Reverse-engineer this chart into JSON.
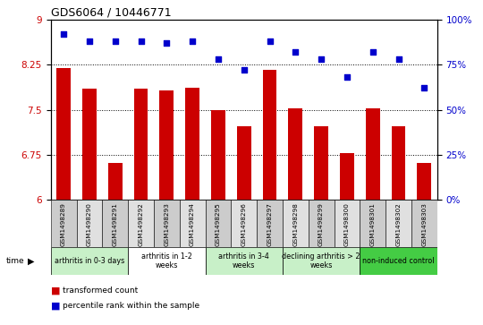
{
  "title": "GDS6064 / 10446771",
  "samples": [
    "GSM1498289",
    "GSM1498290",
    "GSM1498291",
    "GSM1498292",
    "GSM1498293",
    "GSM1498294",
    "GSM1498295",
    "GSM1498296",
    "GSM1498297",
    "GSM1498298",
    "GSM1498299",
    "GSM1498300",
    "GSM1498301",
    "GSM1498302",
    "GSM1498303"
  ],
  "bar_values": [
    8.2,
    7.85,
    6.62,
    7.85,
    7.82,
    7.87,
    7.5,
    7.22,
    8.17,
    7.52,
    7.22,
    6.78,
    7.52,
    7.22,
    6.62
  ],
  "blue_values": [
    92,
    88,
    88,
    88,
    87,
    88,
    78,
    72,
    88,
    82,
    78,
    68,
    82,
    78,
    62
  ],
  "bar_color": "#cc0000",
  "blue_color": "#0000cc",
  "ylim_left": [
    6,
    9
  ],
  "ylim_right": [
    0,
    100
  ],
  "yticks_left": [
    6,
    6.75,
    7.5,
    8.25,
    9
  ],
  "yticks_right": [
    0,
    25,
    50,
    75,
    100
  ],
  "groups": [
    {
      "label": "arthritis in 0-3 days",
      "start": 0,
      "end": 3,
      "color": "#c8f0c8"
    },
    {
      "label": "arthritis in 1-2\nweeks",
      "start": 3,
      "end": 6,
      "color": "#ffffff"
    },
    {
      "label": "arthritis in 3-4\nweeks",
      "start": 6,
      "end": 9,
      "color": "#c8f0c8"
    },
    {
      "label": "declining arthritis > 2\nweeks",
      "start": 9,
      "end": 12,
      "color": "#c8f0c8"
    },
    {
      "label": "non-induced control",
      "start": 12,
      "end": 15,
      "color": "#44cc44"
    }
  ],
  "legend_bar_label": "transformed count",
  "legend_dot_label": "percentile rank within the sample",
  "background_color": "#ffffff"
}
